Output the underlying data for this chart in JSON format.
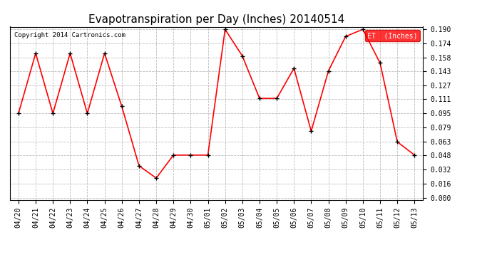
{
  "title": "Evapotranspiration per Day (Inches) 20140514",
  "copyright_text": "Copyright 2014 Cartronics.com",
  "legend_label": "ET  (Inches)",
  "legend_bg": "#ff0000",
  "legend_text_color": "#ffffff",
  "dates": [
    "04/20",
    "04/21",
    "04/22",
    "04/23",
    "04/24",
    "04/25",
    "04/26",
    "04/27",
    "04/28",
    "04/29",
    "04/30",
    "05/01",
    "05/02",
    "05/03",
    "05/04",
    "05/05",
    "05/06",
    "05/07",
    "05/08",
    "05/09",
    "05/10",
    "05/11",
    "05/12",
    "05/13"
  ],
  "values": [
    0.095,
    0.163,
    0.095,
    0.163,
    0.095,
    0.163,
    0.103,
    0.036,
    0.022,
    0.048,
    0.048,
    0.048,
    0.19,
    0.16,
    0.112,
    0.112,
    0.146,
    0.075,
    0.143,
    0.182,
    0.19,
    0.152,
    0.063,
    0.048
  ],
  "line_color": "#ff0000",
  "marker": "+",
  "marker_color": "#000000",
  "marker_size": 5,
  "line_width": 1.2,
  "bg_color": "#ffffff",
  "plot_bg_color": "#ffffff",
  "grid_color": "#bbbbbb",
  "grid_style": "--",
  "ylim": [
    0.0,
    0.19
  ],
  "yticks": [
    0.0,
    0.016,
    0.032,
    0.048,
    0.063,
    0.079,
    0.095,
    0.111,
    0.127,
    0.143,
    0.158,
    0.174,
    0.19
  ],
  "title_fontsize": 11,
  "tick_fontsize": 7,
  "copyright_fontsize": 6.5
}
